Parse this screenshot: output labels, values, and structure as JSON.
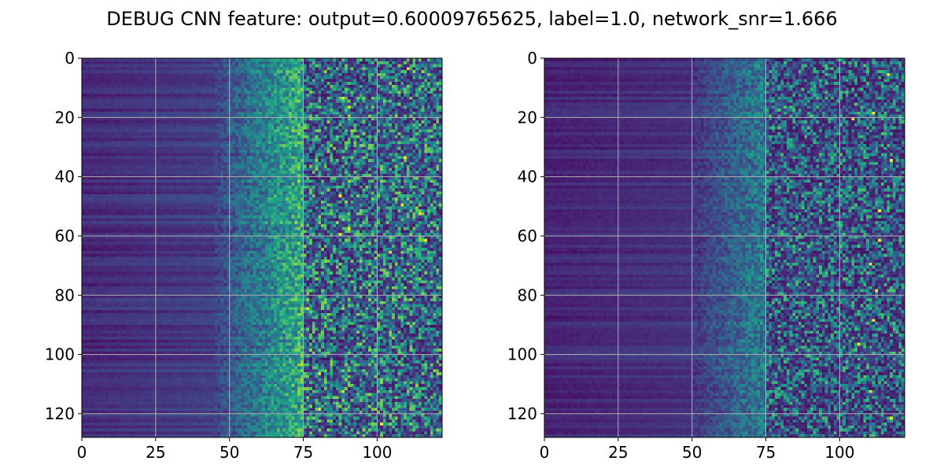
{
  "chart_data": {
    "type": "heatmap",
    "title": "DEBUG CNN feature: output=0.60009765625, label=1.0, network_snr=1.666",
    "colormap": "viridis",
    "grid": true,
    "panels": [
      {
        "name": "",
        "rows": 128,
        "cols": 122,
        "xlim": [
          0,
          122
        ],
        "ylim": [
          128,
          0
        ],
        "xticks": [
          "0",
          "25",
          "50",
          "75",
          "100"
        ],
        "yticks": [
          "0",
          "20",
          "40",
          "60",
          "80",
          "100",
          "120"
        ],
        "xtick_values": [
          0,
          25,
          50,
          75,
          100
        ],
        "ytick_values": [
          0,
          20,
          40,
          60,
          80,
          100,
          120
        ],
        "intensity_profile": "low for columns 0-45, rising steeply after 50, noisy high values beyond 75",
        "bright_pixels": [
          [
            3,
            110
          ],
          [
            13,
            88
          ],
          [
            16,
            90
          ],
          [
            33,
            109
          ],
          [
            46,
            87
          ],
          [
            49,
            108
          ],
          [
            52,
            114
          ],
          [
            57,
            90
          ],
          [
            59,
            87
          ],
          [
            61,
            116
          ],
          [
            65,
            104
          ],
          [
            84,
            76
          ],
          [
            106,
            80
          ],
          [
            112,
            88
          ],
          [
            118,
            80
          ],
          [
            123,
            101
          ]
        ]
      },
      {
        "name": "",
        "rows": 128,
        "cols": 122,
        "xlim": [
          0,
          122
        ],
        "ylim": [
          128,
          0
        ],
        "xticks": [
          "0",
          "25",
          "50",
          "75",
          "100"
        ],
        "yticks": [
          "0",
          "20",
          "40",
          "60",
          "80",
          "100",
          "120"
        ],
        "xtick_values": [
          0,
          25,
          50,
          75,
          100
        ],
        "ytick_values": [
          0,
          20,
          40,
          60,
          80,
          100,
          120
        ],
        "intensity_profile": "low for columns 0-50, moderate noise after 50, sparse high values beyond 75",
        "bright_pixels": [
          [
            5,
            116
          ],
          [
            18,
            111
          ],
          [
            20,
            104
          ],
          [
            34,
            117
          ],
          [
            51,
            113
          ],
          [
            61,
            113
          ],
          [
            69,
            110
          ],
          [
            78,
            112
          ],
          [
            88,
            111
          ],
          [
            96,
            106
          ],
          [
            112,
            110
          ],
          [
            121,
            117
          ]
        ]
      }
    ]
  }
}
